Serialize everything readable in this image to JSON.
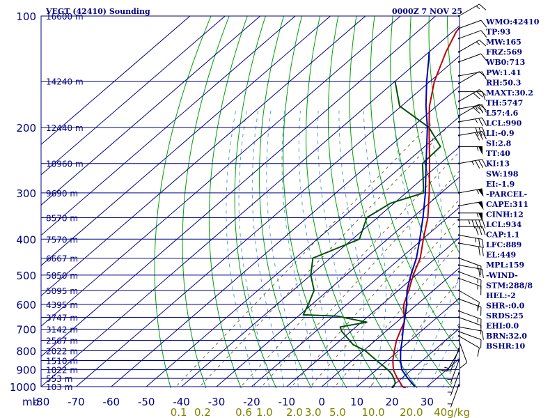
{
  "header": {
    "title": "VEGT (42410) Sounding",
    "datetime": "0000Z  7 NOV 25"
  },
  "indices": [
    "WMO:42410",
    "TP:93",
    "MW:165",
    "FRZ:569",
    "WB0:713",
    "PW:1.41",
    "RH:50.3",
    "MAXT:30.2",
    "TH:5747",
    "L57:4.6",
    "LCL:990",
    "LI:-0.9",
    "SI:2.8",
    "TT:40",
    "KI:13",
    "SW:198",
    "EI:-1.9",
    "-PARCEL-",
    "CAPE:311",
    "CINH:12",
    "LCL:934",
    "CAP:1.1",
    "LFC:889",
    "EL:449",
    "MPL:159",
    "-WIND-",
    "STM:288/8",
    "HEL:-2",
    "SHR-:0.0",
    "SRDS:25",
    "EHI:0.0",
    "BRN:32.0",
    "BSHR:10"
  ],
  "colors": {
    "frame": "#000080",
    "isotherm": "#00008b",
    "dry_adiabat": "#00a000",
    "moist_adiabat": "#5aa0d0",
    "mixing_ratio": "#6b6b3a",
    "temperature": "#c00000",
    "dewpoint": "#005000",
    "parcel": "#0000b0",
    "wind_barb": "#000000"
  },
  "chart_data": {
    "type": "skew-t log-p sounding",
    "x_unit_label": "mb",
    "temperature_ticks": [
      -80,
      -70,
      -60,
      -50,
      -40,
      -30,
      -20,
      -10,
      0,
      10,
      20,
      30
    ],
    "pressure_ticks": [
      100,
      200,
      300,
      400,
      500,
      600,
      700,
      800,
      900,
      1000
    ],
    "pressure_range": [
      1000,
      100
    ],
    "temperature_range": [
      -80,
      40
    ],
    "height_labels": [
      {
        "p": 100,
        "label": "16600 m"
      },
      {
        "p": 150,
        "label": "14240 m"
      },
      {
        "p": 200,
        "label": "12440 m"
      },
      {
        "p": 250,
        "label": "10960 m"
      },
      {
        "p": 300,
        "label": "9690 m"
      },
      {
        "p": 350,
        "label": "8570 m"
      },
      {
        "p": 400,
        "label": "7570 m"
      },
      {
        "p": 450,
        "label": "6667 m"
      },
      {
        "p": 500,
        "label": "5850 m"
      },
      {
        "p": 550,
        "label": "5095 m"
      },
      {
        "p": 600,
        "label": "4395 m"
      },
      {
        "p": 650,
        "label": "3747 m"
      },
      {
        "p": 700,
        "label": "3142 m"
      },
      {
        "p": 750,
        "label": "2567 m"
      },
      {
        "p": 800,
        "label": "2022 m"
      },
      {
        "p": 850,
        "label": "1510 m"
      },
      {
        "p": 900,
        "label": "1022 m"
      },
      {
        "p": 950,
        "label": "553 m"
      },
      {
        "p": 1000,
        "label": "103 m"
      }
    ],
    "mixing_ratio_labels": [
      "0.1",
      "0.2",
      "0.6",
      "1.0",
      "2.0",
      "3.0",
      "5.0",
      "10.0",
      "20.0",
      "40g/kg"
    ],
    "mixing_ratio_values": [
      0.1,
      0.2,
      0.6,
      1.0,
      2.0,
      3.0,
      5.0,
      10.0,
      20.0,
      40.0
    ],
    "series": [
      {
        "id": "temperature",
        "points": [
          {
            "p": 1010,
            "t": 24.5
          },
          {
            "p": 1000,
            "t": 23.0
          },
          {
            "p": 975,
            "t": 21.0
          },
          {
            "p": 950,
            "t": 18.8
          },
          {
            "p": 925,
            "t": 16.8
          },
          {
            "p": 900,
            "t": 14.8
          },
          {
            "p": 850,
            "t": 11.6
          },
          {
            "p": 800,
            "t": 8.8
          },
          {
            "p": 750,
            "t": 6.0
          },
          {
            "p": 700,
            "t": 3.6
          },
          {
            "p": 670,
            "t": 2.2
          },
          {
            "p": 650,
            "t": 0.6
          },
          {
            "p": 630,
            "t": -1.2
          },
          {
            "p": 600,
            "t": -3.8
          },
          {
            "p": 550,
            "t": -7.0
          },
          {
            "p": 500,
            "t": -10.8
          },
          {
            "p": 450,
            "t": -14.4
          },
          {
            "p": 400,
            "t": -19.8
          },
          {
            "p": 350,
            "t": -25.6
          },
          {
            "p": 300,
            "t": -33.4
          },
          {
            "p": 250,
            "t": -43.0
          },
          {
            "p": 200,
            "t": -55.0
          },
          {
            "p": 175,
            "t": -62.0
          },
          {
            "p": 150,
            "t": -68.8
          },
          {
            "p": 125,
            "t": -75.2
          },
          {
            "p": 110,
            "t": -79.0
          },
          {
            "p": 100,
            "t": -80.0
          }
        ]
      },
      {
        "id": "dewpoint",
        "points": [
          {
            "p": 1010,
            "t": 20.5
          },
          {
            "p": 1000,
            "t": 20.5
          },
          {
            "p": 975,
            "t": 19.6
          },
          {
            "p": 950,
            "t": 17.8
          },
          {
            "p": 925,
            "t": 15.8
          },
          {
            "p": 900,
            "t": 13.2
          },
          {
            "p": 850,
            "t": 7.0
          },
          {
            "p": 800,
            "t": 0.5
          },
          {
            "p": 770,
            "t": -5.0
          },
          {
            "p": 750,
            "t": -7.4
          },
          {
            "p": 710,
            "t": -12.5
          },
          {
            "p": 690,
            "t": -14.5
          },
          {
            "p": 670,
            "t": -8.5
          },
          {
            "p": 645,
            "t": -19.0
          },
          {
            "p": 640,
            "t": -29.0
          },
          {
            "p": 600,
            "t": -31.0
          },
          {
            "p": 550,
            "t": -34.0
          },
          {
            "p": 500,
            "t": -40.0
          },
          {
            "p": 450,
            "t": -45.0
          },
          {
            "p": 400,
            "t": -38.0
          },
          {
            "p": 350,
            "t": -43.0
          },
          {
            "p": 320,
            "t": -41.0
          },
          {
            "p": 300,
            "t": -35.0
          },
          {
            "p": 250,
            "t": -45.0
          },
          {
            "p": 225,
            "t": -45.5
          },
          {
            "p": 200,
            "t": -55.0
          },
          {
            "p": 175,
            "t": -70.5
          },
          {
            "p": 150,
            "t": -80.0
          }
        ]
      },
      {
        "id": "parcel",
        "points": [
          {
            "p": 1000,
            "t": 26.5
          },
          {
            "p": 975,
            "t": 24.2
          },
          {
            "p": 950,
            "t": 21.8
          },
          {
            "p": 925,
            "t": 19.5
          },
          {
            "p": 900,
            "t": 17.2
          },
          {
            "p": 850,
            "t": 13.8
          },
          {
            "p": 800,
            "t": 10.6
          },
          {
            "p": 750,
            "t": 7.6
          },
          {
            "p": 700,
            "t": 4.2
          },
          {
            "p": 650,
            "t": 0.8
          },
          {
            "p": 600,
            "t": -3.0
          },
          {
            "p": 550,
            "t": -7.5
          },
          {
            "p": 500,
            "t": -11.5
          },
          {
            "p": 450,
            "t": -15.5
          },
          {
            "p": 400,
            "t": -20.8
          },
          {
            "p": 350,
            "t": -27.0
          },
          {
            "p": 300,
            "t": -34.5
          },
          {
            "p": 250,
            "t": -44.0
          },
          {
            "p": 200,
            "t": -55.5
          },
          {
            "p": 175,
            "t": -63.0
          },
          {
            "p": 150,
            "t": -71.0
          },
          {
            "p": 130,
            "t": -78.0
          },
          {
            "p": 125,
            "t": -80.0
          }
        ]
      }
    ],
    "wind_barbs": [
      {
        "p": 100,
        "dir": 60,
        "kt": 15
      },
      {
        "p": 108,
        "dir": 70,
        "kt": 10
      },
      {
        "p": 115,
        "dir": 70,
        "kt": 10
      },
      {
        "p": 125,
        "dir": 60,
        "kt": 15
      },
      {
        "p": 133,
        "dir": 70,
        "kt": 10
      },
      {
        "p": 145,
        "dir": 80,
        "kt": 10
      },
      {
        "p": 152,
        "dir": 60,
        "kt": 10
      },
      {
        "p": 160,
        "dir": 90,
        "kt": 10
      },
      {
        "p": 170,
        "dir": 60,
        "kt": 30
      },
      {
        "p": 178,
        "dir": 80,
        "kt": 25
      },
      {
        "p": 186,
        "dir": 60,
        "kt": 30
      },
      {
        "p": 193,
        "dir": 80,
        "kt": 25
      },
      {
        "p": 200,
        "dir": 90,
        "kt": 30
      },
      {
        "p": 210,
        "dir": 80,
        "kt": 30
      },
      {
        "p": 225,
        "dir": 90,
        "kt": 55
      },
      {
        "p": 250,
        "dir": 80,
        "kt": 35
      },
      {
        "p": 300,
        "dir": 80,
        "kt": 55
      },
      {
        "p": 325,
        "dir": 80,
        "kt": 50
      },
      {
        "p": 340,
        "dir": 90,
        "kt": 55
      },
      {
        "p": 355,
        "dir": 90,
        "kt": 45
      },
      {
        "p": 370,
        "dir": 90,
        "kt": 30
      },
      {
        "p": 390,
        "dir": 100,
        "kt": 25
      },
      {
        "p": 410,
        "dir": 100,
        "kt": 20
      },
      {
        "p": 450,
        "dir": 110,
        "kt": 15
      },
      {
        "p": 470,
        "dir": 100,
        "kt": 20
      },
      {
        "p": 490,
        "dir": 110,
        "kt": 15
      },
      {
        "p": 510,
        "dir": 110,
        "kt": 15
      },
      {
        "p": 550,
        "dir": 120,
        "kt": 10
      },
      {
        "p": 580,
        "dir": 110,
        "kt": 15
      },
      {
        "p": 625,
        "dir": 110,
        "kt": 15
      },
      {
        "p": 650,
        "dir": 110,
        "kt": 10
      },
      {
        "p": 690,
        "dir": 100,
        "kt": 10
      },
      {
        "p": 710,
        "dir": 110,
        "kt": 10
      },
      {
        "p": 730,
        "dir": 120,
        "kt": 10
      },
      {
        "p": 750,
        "dir": 160,
        "kt": 10
      },
      {
        "p": 790,
        "dir": 200,
        "kt": 10
      },
      {
        "p": 800,
        "dir": 210,
        "kt": 15
      },
      {
        "p": 850,
        "dir": 200,
        "kt": 5
      },
      {
        "p": 920,
        "dir": 200,
        "kt": 5
      },
      {
        "p": 990,
        "dir": 200,
        "kt": 5
      }
    ]
  }
}
